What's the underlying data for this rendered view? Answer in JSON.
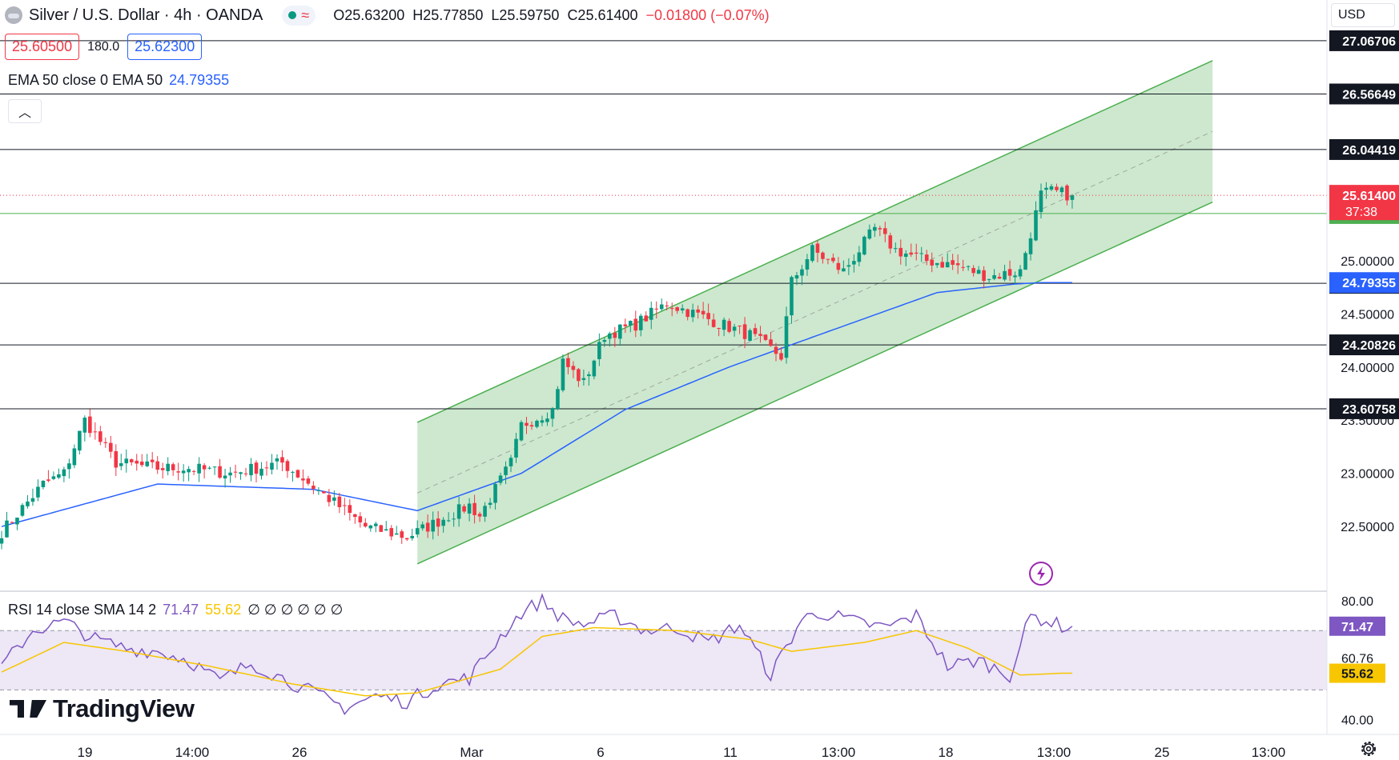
{
  "header": {
    "symbol": "Silver / U.S. Dollar · 4h · OANDA",
    "open": "O25.63200",
    "high": "H25.77850",
    "low": "L25.59750",
    "close": "C25.61400",
    "change": "−0.01800 (−0.07%)"
  },
  "trade": {
    "sell": "25.60500",
    "spread": "180.0",
    "buy": "25.62300"
  },
  "ema": {
    "label": "EMA 50 close 0 EMA 50",
    "value": "24.79355"
  },
  "rsi": {
    "label": "RSI 14 close SMA 14 2",
    "rsi_value": "71.47",
    "sma_value": "55.62",
    "extra": "∅ ∅ ∅ ∅ ∅ ∅"
  },
  "currency": "USD",
  "brand": "TradingView",
  "colors": {
    "up": "#089981",
    "down": "#f23645",
    "ema": "#2962ff",
    "rsi": "#7e57c2",
    "rsi_sma": "#f7c600",
    "channel": "#4caf50",
    "channel_fill": "#c8e6c9",
    "rsi_band": "#ede7f6"
  },
  "chart_data": {
    "type": "candlestick",
    "price_axis": {
      "ylim": [
        21.9,
        27.45
      ],
      "ticks": [
        "25.00000",
        "24.50000",
        "24.00000",
        "23.50000",
        "23.00000",
        "22.50000"
      ]
    },
    "time_axis": {
      "labels": [
        "19",
        "14:00",
        "26",
        "Mar",
        "6",
        "11",
        "13:00",
        "18",
        "13:00",
        "25",
        "13:00"
      ]
    },
    "levels": [
      {
        "label": "27.06706",
        "value": 27.06706,
        "color": "#131722"
      },
      {
        "label": "26.56649",
        "value": 26.56649,
        "color": "#131722"
      },
      {
        "label": "26.04419",
        "value": 26.04419,
        "color": "#131722"
      },
      {
        "label": "25.44299",
        "value": 25.44299,
        "color": "#4caf50"
      },
      {
        "label": "24.78669",
        "value": 24.78669,
        "color": "#131722"
      },
      {
        "label": "24.20826",
        "value": 24.20826,
        "color": "#131722"
      },
      {
        "label": "23.60758",
        "value": 23.60758,
        "color": "#131722"
      }
    ],
    "last_price": {
      "label": "25.61400",
      "countdown": "37:38",
      "value": 25.614
    },
    "ema_last": {
      "label": "24.79355",
      "value": 24.79355
    },
    "channel": {
      "start_index": 80,
      "end_index": 233,
      "lower_start": 22.15,
      "lower_end": 25.55,
      "width": 1.33
    },
    "candles_anchor_index": [
      0,
      8,
      12,
      16,
      22,
      30,
      36,
      44,
      54,
      62,
      70,
      78,
      84,
      90,
      92,
      98,
      100,
      106,
      108,
      112,
      116,
      122,
      128,
      136,
      144,
      150,
      152,
      156,
      162,
      168,
      172,
      178,
      184,
      190,
      196,
      200,
      202,
      206
    ],
    "candles_anchor_close": [
      22.45,
      22.9,
      23.0,
      23.5,
      23.1,
      23.05,
      23.05,
      23.0,
      23.1,
      22.8,
      22.5,
      22.4,
      22.55,
      22.7,
      22.6,
      23.1,
      23.45,
      23.6,
      24.05,
      23.85,
      24.3,
      24.4,
      24.6,
      24.45,
      24.3,
      24.1,
      24.8,
      25.1,
      24.9,
      25.3,
      25.1,
      25.0,
      24.95,
      24.85,
      24.9,
      25.62,
      25.65,
      25.614
    ],
    "ema_anchor_index": [
      0,
      30,
      60,
      80,
      100,
      120,
      140,
      160,
      180,
      195,
      200
    ],
    "ema_anchor_value": [
      22.5,
      22.9,
      22.85,
      22.65,
      23.0,
      23.6,
      24.0,
      24.35,
      24.7,
      24.78,
      24.79355
    ],
    "rsi_axis": {
      "ylim": [
        35,
        83
      ],
      "ticks": [
        "80.00",
        "71.22",
        "60.76",
        "40.00"
      ],
      "levels": [
        70,
        50
      ]
    },
    "rsi_last": "71.47",
    "rsi_sma_last": "55.62",
    "rsi_anchor_index": [
      0,
      6,
      12,
      18,
      24,
      30,
      36,
      42,
      48,
      54,
      60,
      66,
      72,
      78,
      84,
      90,
      96,
      100,
      104,
      108,
      112,
      118,
      124,
      130,
      136,
      142,
      148,
      154,
      158,
      164,
      170,
      176,
      182,
      188,
      194,
      198,
      200,
      204
    ],
    "rsi_anchor_value": [
      58,
      70,
      73,
      67,
      64,
      63,
      60,
      53,
      59,
      54,
      49,
      44,
      48,
      46,
      52,
      54,
      68,
      76,
      80,
      74,
      72,
      75,
      70,
      71,
      66,
      72,
      55,
      74,
      76,
      73,
      71,
      75,
      58,
      60,
      55,
      75,
      74,
      71.47
    ],
    "rsi_sma_anchor_index": [
      0,
      12,
      24,
      40,
      56,
      70,
      80,
      96,
      104,
      114,
      130,
      144,
      152,
      166,
      176,
      186,
      196,
      204
    ],
    "rsi_sma_anchor_value": [
      56,
      66,
      63,
      58,
      52,
      48,
      49,
      57,
      68,
      71,
      70,
      67,
      63,
      66,
      70,
      64,
      55,
      55.62
    ]
  }
}
